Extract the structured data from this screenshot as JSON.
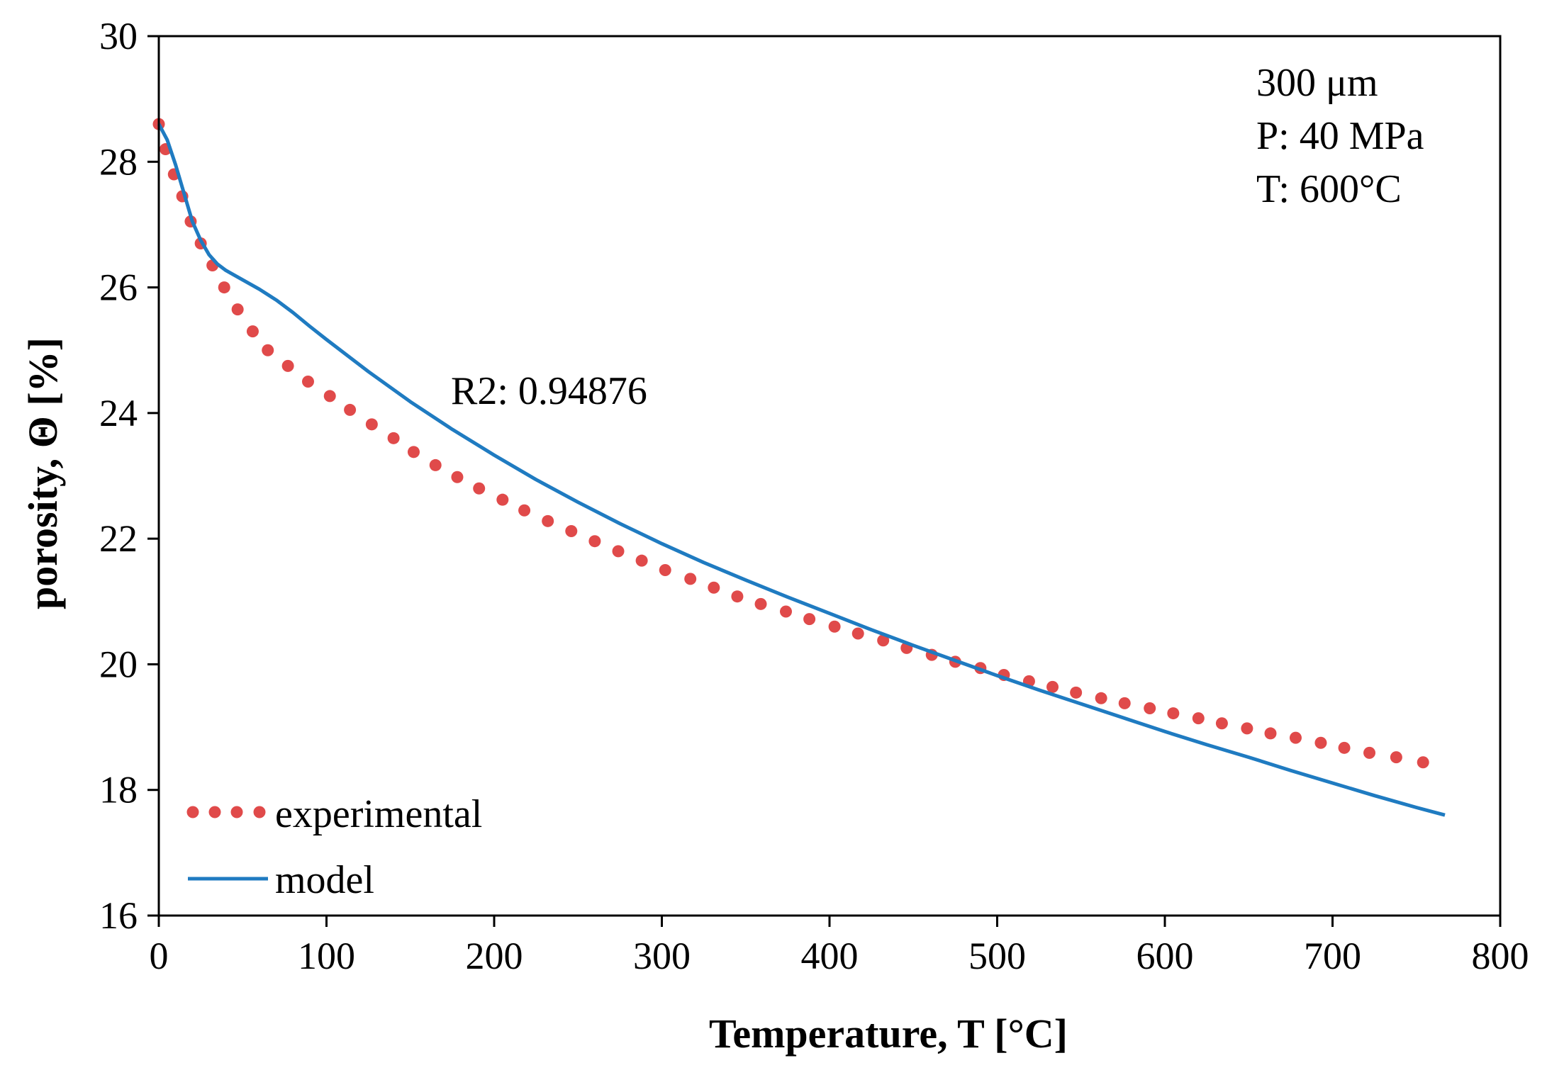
{
  "chart_data": {
    "type": "line",
    "title": "",
    "xlabel": "Temperature, T [°C]",
    "ylabel": "porosity, Θ [%]",
    "xlim": [
      0,
      800
    ],
    "ylim": [
      16,
      30
    ],
    "x_ticks": [
      0,
      100,
      200,
      300,
      400,
      500,
      600,
      700,
      800
    ],
    "y_ticks": [
      16,
      18,
      20,
      22,
      24,
      26,
      28,
      30
    ],
    "grid": false,
    "legend_position": "bottom-left",
    "annotations": {
      "sample": [
        "300 μm",
        "P: 40 MPa",
        "T: 600°C"
      ],
      "fit": "R2: 0.94876"
    },
    "series": [
      {
        "name": "experimental",
        "style": "dotted",
        "color": "#e04a4a",
        "points": [
          [
            0,
            28.6
          ],
          [
            4,
            28.2
          ],
          [
            9,
            27.8
          ],
          [
            14,
            27.45
          ],
          [
            19,
            27.05
          ],
          [
            25,
            26.7
          ],
          [
            32,
            26.35
          ],
          [
            39,
            26.0
          ],
          [
            47,
            25.65
          ],
          [
            56,
            25.3
          ],
          [
            65,
            25.0
          ],
          [
            77,
            24.75
          ],
          [
            89,
            24.5
          ],
          [
            102,
            24.27
          ],
          [
            114,
            24.05
          ],
          [
            127,
            23.82
          ],
          [
            140,
            23.6
          ],
          [
            152,
            23.38
          ],
          [
            165,
            23.17
          ],
          [
            178,
            22.98
          ],
          [
            191,
            22.8
          ],
          [
            205,
            22.62
          ],
          [
            218,
            22.45
          ],
          [
            232,
            22.28
          ],
          [
            246,
            22.12
          ],
          [
            260,
            21.96
          ],
          [
            274,
            21.8
          ],
          [
            288,
            21.65
          ],
          [
            302,
            21.5
          ],
          [
            317,
            21.36
          ],
          [
            331,
            21.22
          ],
          [
            345,
            21.08
          ],
          [
            359,
            20.96
          ],
          [
            374,
            20.84
          ],
          [
            388,
            20.72
          ],
          [
            403,
            20.6
          ],
          [
            417,
            20.49
          ],
          [
            432,
            20.38
          ],
          [
            446,
            20.26
          ],
          [
            461,
            20.15
          ],
          [
            475,
            20.04
          ],
          [
            490,
            19.94
          ],
          [
            504,
            19.83
          ],
          [
            519,
            19.73
          ],
          [
            533,
            19.64
          ],
          [
            547,
            19.55
          ],
          [
            562,
            19.46
          ],
          [
            576,
            19.38
          ],
          [
            591,
            19.3
          ],
          [
            605,
            19.22
          ],
          [
            620,
            19.14
          ],
          [
            634,
            19.06
          ],
          [
            649,
            18.98
          ],
          [
            663,
            18.9
          ],
          [
            678,
            18.83
          ],
          [
            693,
            18.75
          ],
          [
            707,
            18.67
          ],
          [
            722,
            18.59
          ],
          [
            738,
            18.52
          ],
          [
            754,
            18.44
          ]
        ]
      },
      {
        "name": "model",
        "style": "solid",
        "color": "#1f7bc1",
        "points": [
          [
            0,
            28.6
          ],
          [
            5,
            28.35
          ],
          [
            10,
            27.95
          ],
          [
            15,
            27.5
          ],
          [
            20,
            27.05
          ],
          [
            25,
            26.75
          ],
          [
            30,
            26.52
          ],
          [
            35,
            26.37
          ],
          [
            40,
            26.27
          ],
          [
            50,
            26.12
          ],
          [
            60,
            25.97
          ],
          [
            70,
            25.8
          ],
          [
            80,
            25.6
          ],
          [
            90,
            25.38
          ],
          [
            100,
            25.17
          ],
          [
            125,
            24.66
          ],
          [
            150,
            24.18
          ],
          [
            175,
            23.74
          ],
          [
            200,
            23.33
          ],
          [
            225,
            22.94
          ],
          [
            250,
            22.58
          ],
          [
            275,
            22.24
          ],
          [
            300,
            21.92
          ],
          [
            325,
            21.62
          ],
          [
            350,
            21.34
          ],
          [
            375,
            21.07
          ],
          [
            400,
            20.81
          ],
          [
            425,
            20.55
          ],
          [
            450,
            20.3
          ],
          [
            475,
            20.06
          ],
          [
            500,
            19.82
          ],
          [
            525,
            19.59
          ],
          [
            550,
            19.37
          ],
          [
            575,
            19.15
          ],
          [
            600,
            18.93
          ],
          [
            625,
            18.72
          ],
          [
            650,
            18.52
          ],
          [
            675,
            18.31
          ],
          [
            700,
            18.11
          ],
          [
            725,
            17.91
          ],
          [
            750,
            17.72
          ],
          [
            767,
            17.6
          ]
        ]
      }
    ]
  }
}
